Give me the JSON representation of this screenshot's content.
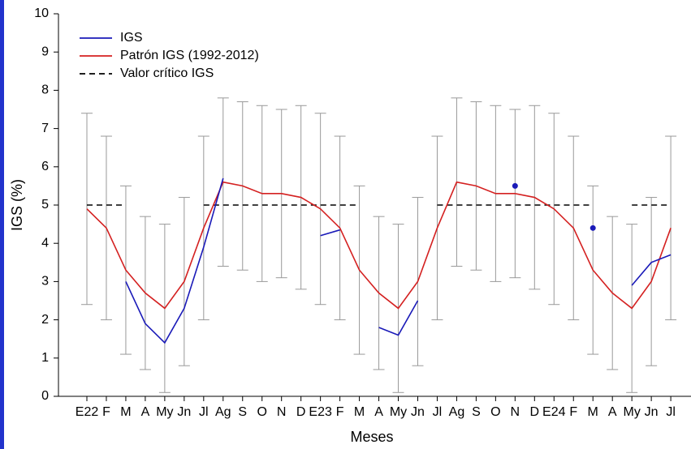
{
  "chart_data": {
    "type": "line",
    "xlabel": "Meses",
    "ylabel": "IGS (%)",
    "categories": [
      "E22",
      "F",
      "M",
      "A",
      "My",
      "Jn",
      "Jl",
      "Ag",
      "S",
      "O",
      "N",
      "D",
      "E23",
      "F",
      "M",
      "A",
      "My",
      "Jn",
      "Jl",
      "Ag",
      "S",
      "O",
      "N",
      "D",
      "E24",
      "F",
      "M",
      "A",
      "My",
      "Jn",
      "Jl"
    ],
    "ylim": [
      0,
      10
    ],
    "yticks": [
      0,
      1,
      2,
      3,
      4,
      5,
      6,
      7,
      8,
      9,
      10
    ],
    "legend": "upper-left",
    "series": [
      {
        "name": "IGS",
        "color": "#1a1ab8",
        "style": "solid",
        "values": [
          null,
          null,
          3.0,
          1.9,
          1.4,
          2.3,
          3.9,
          5.7,
          null,
          null,
          null,
          null,
          4.2,
          4.35,
          null,
          1.8,
          1.6,
          2.5,
          null,
          null,
          null,
          null,
          5.5,
          null,
          null,
          null,
          4.4,
          null,
          2.9,
          3.5,
          3.7
        ]
      },
      {
        "name": "Patrón IGS (1992-2012)",
        "color": "#d42020",
        "style": "solid",
        "values": [
          4.9,
          4.4,
          3.3,
          2.7,
          2.3,
          3.0,
          4.4,
          5.6,
          5.5,
          5.3,
          5.3,
          5.2,
          4.9,
          4.4,
          3.3,
          2.7,
          2.3,
          3.0,
          4.4,
          5.6,
          5.5,
          5.3,
          5.3,
          5.2,
          4.9,
          4.4,
          3.3,
          2.7,
          2.3,
          3.0,
          4.4
        ]
      },
      {
        "name": "Valor crítico IGS",
        "color": "#000000",
        "style": "dashed",
        "values": [
          5,
          5,
          5,
          null,
          null,
          null,
          5,
          5,
          5,
          5,
          5,
          5,
          5,
          5,
          5,
          null,
          null,
          null,
          5,
          5,
          5,
          5,
          5,
          5,
          5,
          5,
          5,
          null,
          5,
          5,
          5
        ]
      }
    ],
    "error_bars": {
      "color": "#999999",
      "low": [
        2.4,
        2.0,
        1.1,
        0.7,
        0.1,
        0.8,
        2.0,
        3.4,
        3.3,
        3.0,
        3.1,
        2.8,
        2.4,
        2.0,
        1.1,
        0.7,
        0.1,
        0.8,
        2.0,
        3.4,
        3.3,
        3.0,
        3.1,
        2.8,
        2.4,
        2.0,
        1.1,
        0.7,
        0.1,
        0.8,
        2.0
      ],
      "high": [
        7.4,
        6.8,
        5.5,
        4.7,
        4.5,
        5.2,
        6.8,
        7.8,
        7.7,
        7.6,
        7.5,
        7.6,
        7.4,
        6.8,
        5.5,
        4.7,
        4.5,
        5.2,
        6.8,
        7.8,
        7.7,
        7.6,
        7.5,
        7.6,
        7.4,
        6.8,
        5.5,
        4.7,
        4.5,
        5.2,
        6.8
      ]
    }
  }
}
